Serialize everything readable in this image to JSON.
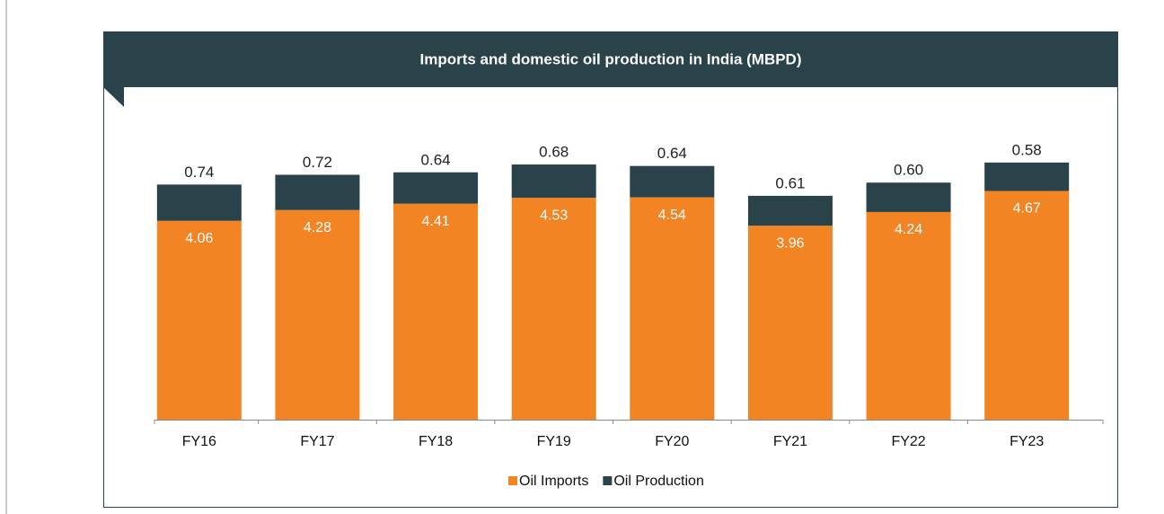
{
  "chart_data": {
    "type": "stacked_bar",
    "title": "Imports and domestic oil production in India (MBPD)",
    "categories": [
      "FY16",
      "FY17",
      "FY18",
      "FY19",
      "FY20",
      "FY21",
      "FY22",
      "FY23"
    ],
    "series": [
      {
        "name": "Oil Imports",
        "color": "#f28423",
        "values": [
          4.06,
          4.28,
          4.41,
          4.53,
          4.54,
          3.96,
          4.24,
          4.67
        ]
      },
      {
        "name": "Oil Production",
        "color": "#2a4249",
        "values": [
          0.74,
          0.72,
          0.64,
          0.68,
          0.64,
          0.61,
          0.6,
          0.58
        ],
        "value_labels": [
          "0.74",
          "0.72",
          "0.64",
          "0.68",
          "0.64",
          "0.61",
          "0.60",
          "0.58"
        ]
      }
    ],
    "ylim": [
      0,
      6
    ],
    "legend": "bottom"
  }
}
